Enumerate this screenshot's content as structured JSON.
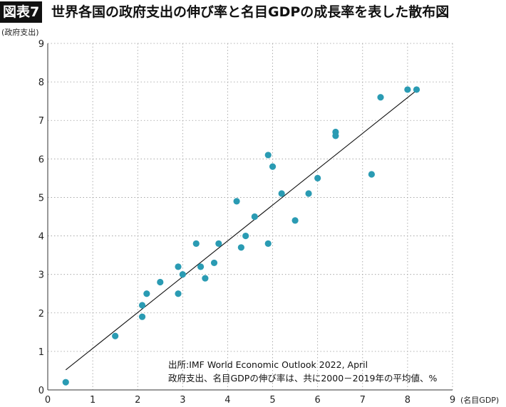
{
  "header": {
    "badge": "図表7",
    "title": "世界各国の政府支出の伸び率と名目GDPの成長率を表した散布図"
  },
  "chart_data": {
    "type": "scatter",
    "xlabel": "(名目GDP)",
    "ylabel": "(政府支出)",
    "xlim": [
      0,
      9
    ],
    "ylim": [
      0,
      9
    ],
    "xticks": [
      0,
      1,
      2,
      3,
      4,
      5,
      6,
      7,
      8,
      9
    ],
    "yticks": [
      0,
      1,
      2,
      3,
      4,
      5,
      6,
      7,
      8,
      9
    ],
    "grid": true,
    "grid_style": "dotted",
    "point_color": "#2a9bb3",
    "points": [
      [
        0.4,
        0.2
      ],
      [
        1.5,
        1.4
      ],
      [
        2.1,
        1.9
      ],
      [
        2.1,
        2.2
      ],
      [
        2.2,
        2.5
      ],
      [
        2.5,
        2.8
      ],
      [
        2.9,
        2.5
      ],
      [
        2.9,
        3.2
      ],
      [
        3.0,
        3.0
      ],
      [
        3.3,
        3.8
      ],
      [
        3.4,
        3.2
      ],
      [
        3.5,
        2.9
      ],
      [
        3.7,
        3.3
      ],
      [
        3.8,
        3.8
      ],
      [
        4.2,
        4.9
      ],
      [
        4.3,
        3.7
      ],
      [
        4.4,
        4.0
      ],
      [
        4.6,
        4.5
      ],
      [
        4.9,
        3.8
      ],
      [
        4.9,
        6.1
      ],
      [
        5.0,
        5.8
      ],
      [
        5.2,
        5.1
      ],
      [
        5.5,
        4.4
      ],
      [
        5.8,
        5.1
      ],
      [
        6.0,
        5.5
      ],
      [
        6.4,
        6.6
      ],
      [
        6.4,
        6.7
      ],
      [
        7.2,
        5.6
      ],
      [
        7.4,
        7.6
      ],
      [
        8.0,
        7.8
      ],
      [
        8.2,
        7.8
      ]
    ],
    "trendline": {
      "x": [
        0.4,
        8.2
      ],
      "y": [
        0.52,
        7.78
      ]
    },
    "annotations": [
      "出所:IMF World Economic Outlook 2022, April",
      "政府支出、名目GDPの伸び率は、共に2000－2019年の平均値、%"
    ]
  }
}
